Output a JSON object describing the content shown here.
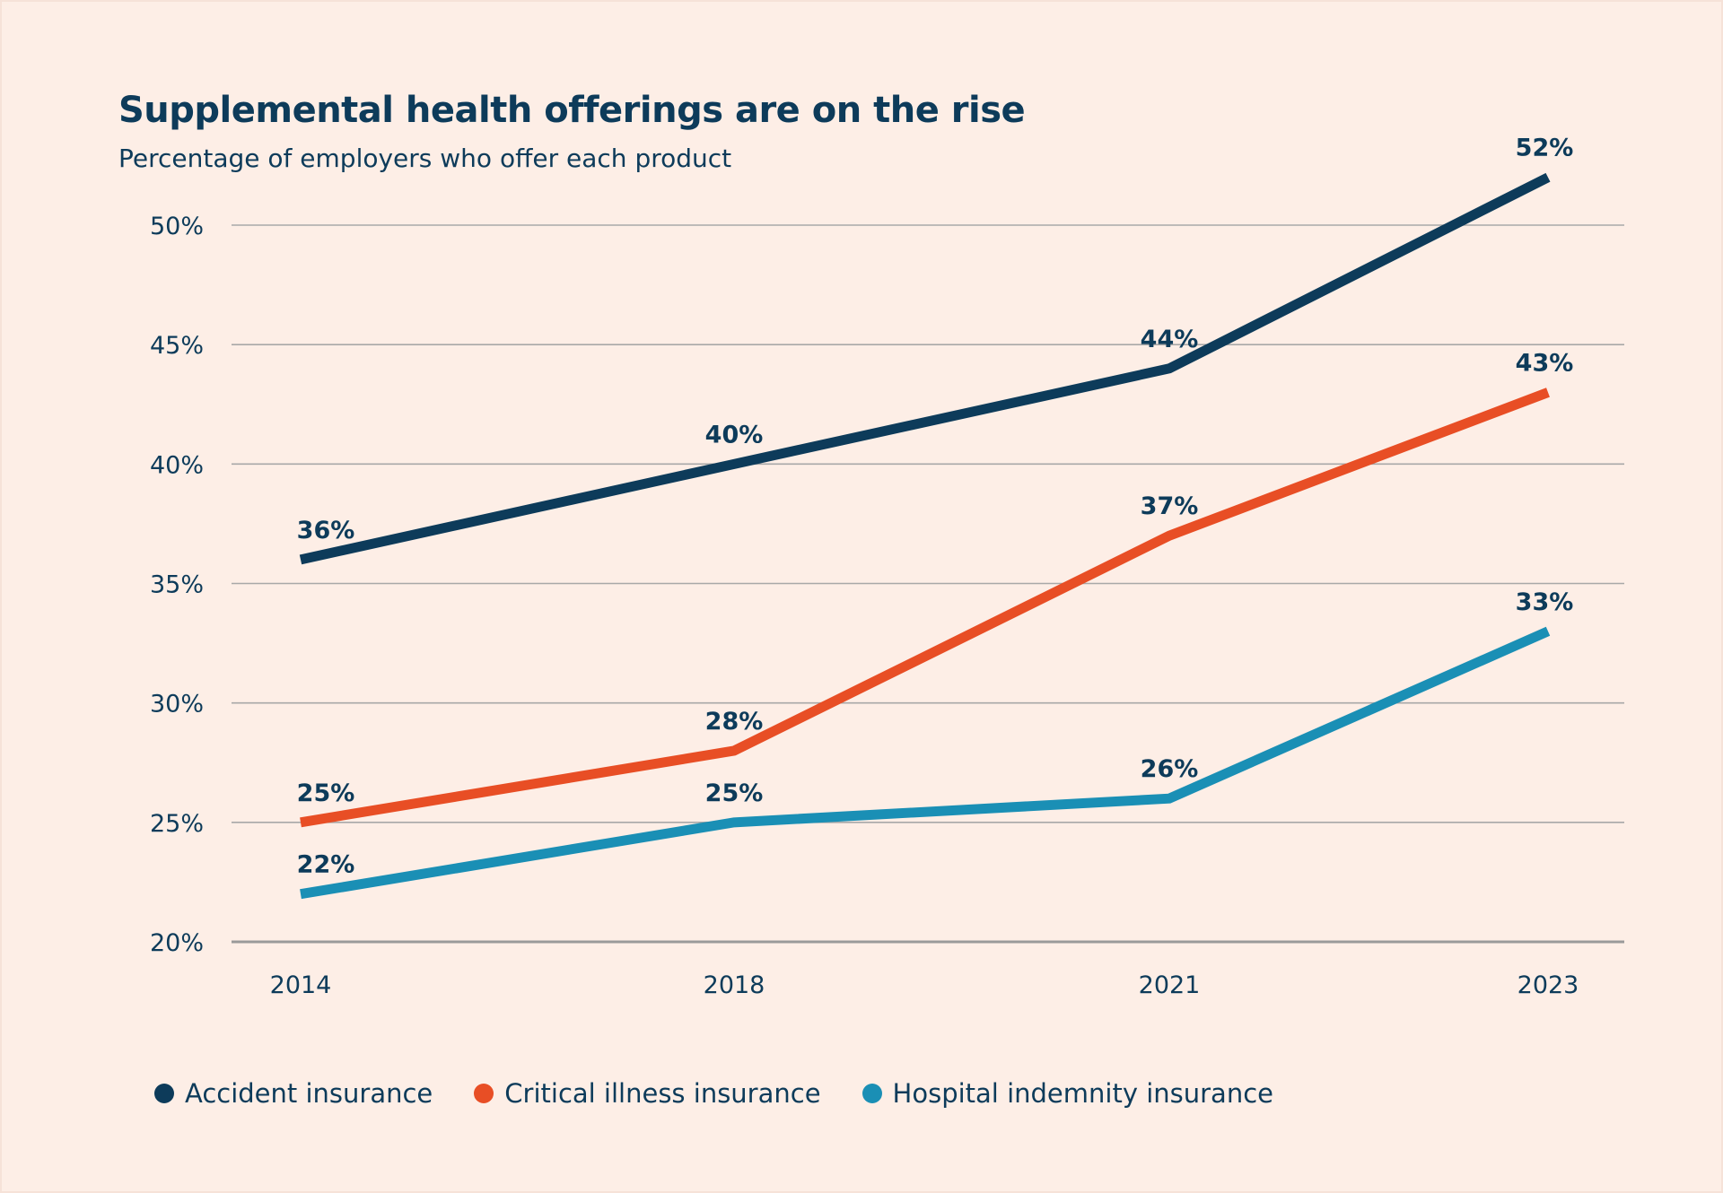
{
  "chart_data": {
    "type": "line",
    "title": "Supplemental health offerings are on the rise",
    "subtitle": "Percentage of employers who offer each product",
    "categories": [
      "2014",
      "2018",
      "2021",
      "2023"
    ],
    "ylim": [
      20,
      50
    ],
    "yticks": [
      "20%",
      "25%",
      "30%",
      "35%",
      "40%",
      "45%",
      "50%"
    ],
    "ytick_values": [
      20,
      25,
      30,
      35,
      40,
      45,
      50
    ],
    "grid": true,
    "legend_position": "bottom",
    "series": [
      {
        "name": "Accident insurance",
        "color": "#0d3b5a",
        "values": [
          36,
          40,
          44,
          52
        ],
        "labels": [
          "36%",
          "40%",
          "44%",
          "52%"
        ]
      },
      {
        "name": "Critical illness insurance",
        "color": "#e84e25",
        "values": [
          25,
          28,
          37,
          43
        ],
        "labels": [
          "25%",
          "28%",
          "37%",
          "43%"
        ]
      },
      {
        "name": "Hospital indemnity insurance",
        "color": "#1a8fb5",
        "values": [
          22,
          25,
          26,
          33
        ],
        "labels": [
          "22%",
          "25%",
          "26%",
          "33%"
        ]
      }
    ]
  }
}
